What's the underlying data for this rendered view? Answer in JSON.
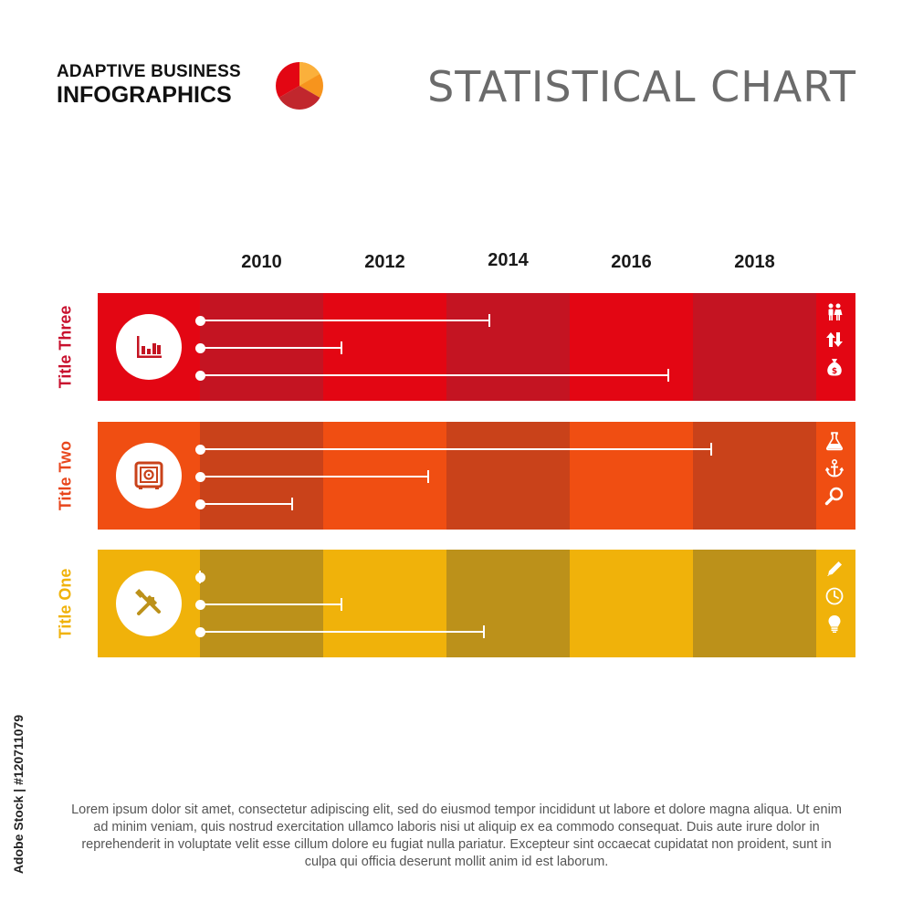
{
  "header": {
    "brand_line1": "ADAPTIVE BUSINESS",
    "brand_line2": "INFOGRAPHICS",
    "title": "STATISTICAL CHART"
  },
  "side_credit": "Adobe Stock | #120711079",
  "footer_text": "Lorem ipsum dolor sit amet, consectetur adipiscing elit, sed do eiusmod tempor incididunt ut labore et dolore magna aliqua. Ut enim ad minim veniam, quis nostrud exercitation ullamco laboris nisi ut aliquip ex ea commodo consequat. Duis aute irure dolor in reprehenderit in voluptate velit esse cillum dolore eu fugiat nulla pariatur. Excepteur sint occaecat cupidatat non proident, sunt in culpa qui officia deserunt mollit anim id est laborum.",
  "colors": {
    "title_three": "#e30613",
    "title_two": "#f04e12",
    "title_one": "#f0b20a"
  },
  "chart_data": {
    "type": "bar",
    "orientation": "horizontal",
    "categories": [
      "2010",
      "2012",
      "2014",
      "2016",
      "2018"
    ],
    "x_range": [
      2009,
      2019
    ],
    "groups": [
      {
        "label": "Title Three",
        "main_icon": "bar-chart-icon",
        "side_icons": [
          "people-icon",
          "arrows-updown-icon",
          "money-bag-icon"
        ],
        "values": [
          2014.7,
          2012.3,
          2017.6
        ]
      },
      {
        "label": "Title Two",
        "main_icon": "safe-icon",
        "side_icons": [
          "flask-icon",
          "anchor-icon",
          "magnifier-icon"
        ],
        "values": [
          2018.3,
          2013.7,
          2011.5
        ]
      },
      {
        "label": "Title One",
        "main_icon": "tools-icon",
        "side_icons": [
          "pencil-icon",
          "clock-icon",
          "lightbulb-icon"
        ],
        "values": [
          2010.0,
          2012.3,
          2014.6
        ]
      }
    ]
  }
}
